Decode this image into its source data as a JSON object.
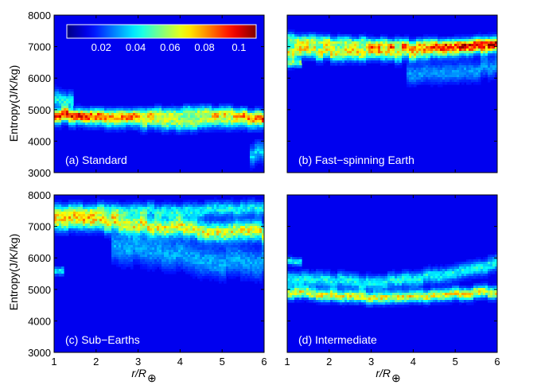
{
  "chart_data": {
    "type": "heatmap",
    "colormap": "jet",
    "colorbar": {
      "placement": "inside-top-left of panel (a)",
      "range": [
        0.0,
        0.11
      ],
      "ticks": [
        0.02,
        0.04,
        0.06,
        0.08,
        0.1
      ],
      "tick_labels": [
        "0.02",
        "0.04",
        "0.06",
        "0.08",
        "0.1"
      ]
    },
    "shared_axes": {
      "xlim": [
        1,
        6
      ],
      "ylim": [
        3000,
        8000
      ],
      "x_ticks": [
        1,
        2,
        3,
        4,
        5,
        6
      ],
      "x_tick_labels": [
        "1",
        "2",
        "3",
        "4",
        "5",
        "6"
      ],
      "y_ticks": [
        3000,
        4000,
        5000,
        6000,
        7000,
        8000
      ],
      "y_tick_labels": [
        "3000",
        "4000",
        "5000",
        "6000",
        "7000",
        "8000"
      ],
      "xlabel_main": "r/R",
      "xlabel_sub": "⊕",
      "ylabel": "Entropy(J/K/kg)"
    },
    "panels": [
      {
        "label": "(a) Standard",
        "ridges": [
          {
            "x": [
              1,
              2,
              3,
              4,
              5,
              6
            ],
            "y": [
              4830,
              4720,
              4640,
              4560,
              4690,
              4690
            ],
            "peak": 0.045,
            "width": 160
          },
          {
            "x": [
              1,
              2,
              3,
              4,
              5,
              6
            ],
            "y": [
              4830,
              4820,
              4850,
              4900,
              4920,
              4760
            ],
            "peak": 0.038,
            "width": 120
          },
          {
            "x": [
              1,
              1.3
            ],
            "y": [
              5450,
              5300
            ],
            "peak": 0.03,
            "width": 180
          },
          {
            "x": [
              5.8,
              6
            ],
            "y": [
              3600,
              3700
            ],
            "peak": 0.025,
            "width": 200
          }
        ]
      },
      {
        "label": "(b) Fast−spinning Earth",
        "ridges": [
          {
            "x": [
              1,
              2,
              3,
              4,
              5,
              6
            ],
            "y": [
              6850,
              6850,
              6800,
              6820,
              6900,
              7050
            ],
            "peak": 0.055,
            "width": 160
          },
          {
            "x": [
              1,
              2,
              3,
              4,
              5,
              6
            ],
            "y": [
              7200,
              7150,
              7100,
              7050,
              7050,
              7150
            ],
            "peak": 0.04,
            "width": 120
          },
          {
            "x": [
              1,
              1.2
            ],
            "y": [
              6450,
              6500
            ],
            "peak": 0.04,
            "width": 80
          },
          {
            "x": [
              4,
              5,
              6
            ],
            "y": [
              6150,
              6200,
              6350
            ],
            "peak": 0.018,
            "width": 200
          }
        ]
      },
      {
        "label": "(c) Sub−Earths",
        "ridges": [
          {
            "x": [
              1,
              2,
              3,
              4,
              5,
              6
            ],
            "y": [
              7250,
              7150,
              7050,
              6950,
              6850,
              6800
            ],
            "peak": 0.055,
            "width": 200
          },
          {
            "x": [
              1,
              2,
              3,
              4,
              5,
              6
            ],
            "y": [
              7450,
              7500,
              7500,
              7500,
              7550,
              7550
            ],
            "peak": 0.03,
            "width": 150
          },
          {
            "x": [
              2.5,
              4,
              5,
              6
            ],
            "y": [
              6400,
              6100,
              5850,
              5850
            ],
            "peak": 0.02,
            "width": 300
          },
          {
            "x": [
              1,
              1.1
            ],
            "y": [
              5600,
              5600
            ],
            "peak": 0.03,
            "width": 80
          }
        ]
      },
      {
        "label": "(d) Intermediate",
        "ridges": [
          {
            "x": [
              1,
              2,
              3,
              4,
              5,
              6
            ],
            "y": [
              4900,
              4830,
              4750,
              4780,
              4850,
              4930
            ],
            "peak": 0.055,
            "width": 120
          },
          {
            "x": [
              1,
              2,
              3,
              4,
              5,
              6
            ],
            "y": [
              5350,
              5300,
              5200,
              5300,
              5550,
              5800
            ],
            "peak": 0.03,
            "width": 150
          },
          {
            "x": [
              1,
              1.2
            ],
            "y": [
              5950,
              5900
            ],
            "peak": 0.03,
            "width": 80
          }
        ]
      }
    ]
  }
}
